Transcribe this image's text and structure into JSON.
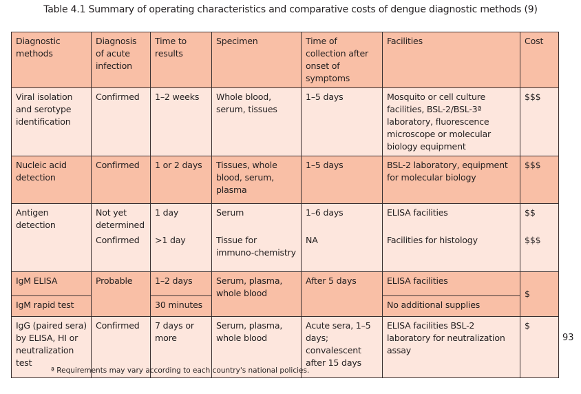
{
  "title": "Table 4.1 Summary of operating characteristics and comparative costs of dengue diagnostic methods (9)",
  "headers": [
    "Diagnostic methods",
    "Diagnosis of acute infection",
    "Time to results",
    "Specimen",
    "Time of collection after onset of symptoms",
    "Facilities",
    "Cost"
  ],
  "rows": {
    "viral": {
      "method": "Viral isolation and serotype identification",
      "diagnosis": "Confirmed",
      "time": "1–2 weeks",
      "specimen": "Whole blood, serum, tissues",
      "collection": "1–5 days",
      "facilities": "Mosquito or cell culture facilities, BSL-2/BSL-3ª laboratory, fluorescence microscope or molecular biology equipment",
      "cost": "$$$"
    },
    "nucleic": {
      "method": "Nucleic acid detection",
      "diagnosis": "Confirmed",
      "time": "1 or 2 days",
      "specimen": "Tissues, whole blood, serum, plasma",
      "collection": "1–5 days",
      "facilities": "BSL-2 laboratory, equipment for molecular biology",
      "cost": "$$$"
    },
    "antigen": {
      "method": "Antigen detection",
      "diagnosis1": "Not yet determined",
      "diagnosis2": "Confirmed",
      "time1": "1 day",
      "time2": ">1 day",
      "specimen1": "Serum",
      "specimen2": "Tissue for immuno-chemistry",
      "collection1": "1–6 days",
      "collection2": "NA",
      "facilities1": "ELISA facilities",
      "facilities2": "Facilities for histology",
      "cost1": "$$",
      "cost2": "$$$"
    },
    "igm": {
      "method1": "IgM ELISA",
      "method2": "IgM rapid test",
      "diagnosis": "Probable",
      "time1": "1–2 days",
      "time2": "30 minutes",
      "specimen": "Serum, plasma, whole blood",
      "collection": "After 5 days",
      "facilities1": "ELISA facilities",
      "facilities2": "No additional supplies",
      "cost": "$"
    },
    "igg": {
      "method": "IgG (paired sera) by ELISA, HI or neutralization test",
      "diagnosis": "Confirmed",
      "time": "7 days or more",
      "specimen": "Serum, plasma, whole blood",
      "collection": "Acute sera, 1–5 days; convalescent after 15 days",
      "facilities": "ELISA facilities BSL-2 laboratory for neutralization assay",
      "cost": "$"
    }
  },
  "footnote": "ª Requirements may vary according to each country's national policies.",
  "page_number": "93"
}
